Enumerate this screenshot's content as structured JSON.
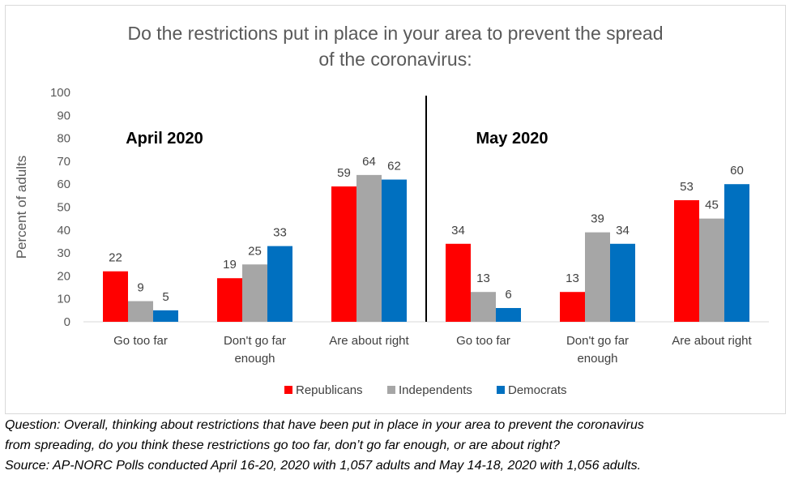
{
  "chart_data": {
    "type": "bar",
    "title": [
      "Do the restrictions put in place in your area to prevent the spread",
      "of the coronavirus:"
    ],
    "ylabel": "Percent of adults",
    "xlabel": "",
    "ylim": [
      0,
      100
    ],
    "yticks": [
      0,
      10,
      20,
      30,
      40,
      50,
      60,
      70,
      80,
      90,
      100
    ],
    "grid": false,
    "legend_position": "bottom",
    "series_meta": [
      {
        "name": "Republicans",
        "color": "#ff0000"
      },
      {
        "name": "Independents",
        "color": "#a6a6a6"
      },
      {
        "name": "Democrats",
        "color": "#0070c0"
      }
    ],
    "panels": [
      {
        "label": "April 2020",
        "categories": [
          [
            "Go too far"
          ],
          [
            "Don't go far",
            "enough"
          ],
          [
            "Are about right"
          ]
        ],
        "values": [
          [
            22,
            9,
            5
          ],
          [
            19,
            25,
            33
          ],
          [
            59,
            64,
            62
          ]
        ]
      },
      {
        "label": "May 2020",
        "categories": [
          [
            "Go too far"
          ],
          [
            "Don't go far",
            "enough"
          ],
          [
            "Are about right"
          ]
        ],
        "values": [
          [
            34,
            13,
            6
          ],
          [
            13,
            39,
            34
          ],
          [
            53,
            45,
            60
          ]
        ]
      }
    ]
  },
  "notes": {
    "question_line1": "Question: Overall, thinking about restrictions that have been put in place in your area to prevent the coronavirus",
    "question_line2": "from spreading, do you think these restrictions go too far, don’t go far enough, or are about right?",
    "source": "Source: AP-NORC Polls conducted April 16-20, 2020 with 1,057 adults and May 14-18, 2020 with 1,056 adults."
  }
}
